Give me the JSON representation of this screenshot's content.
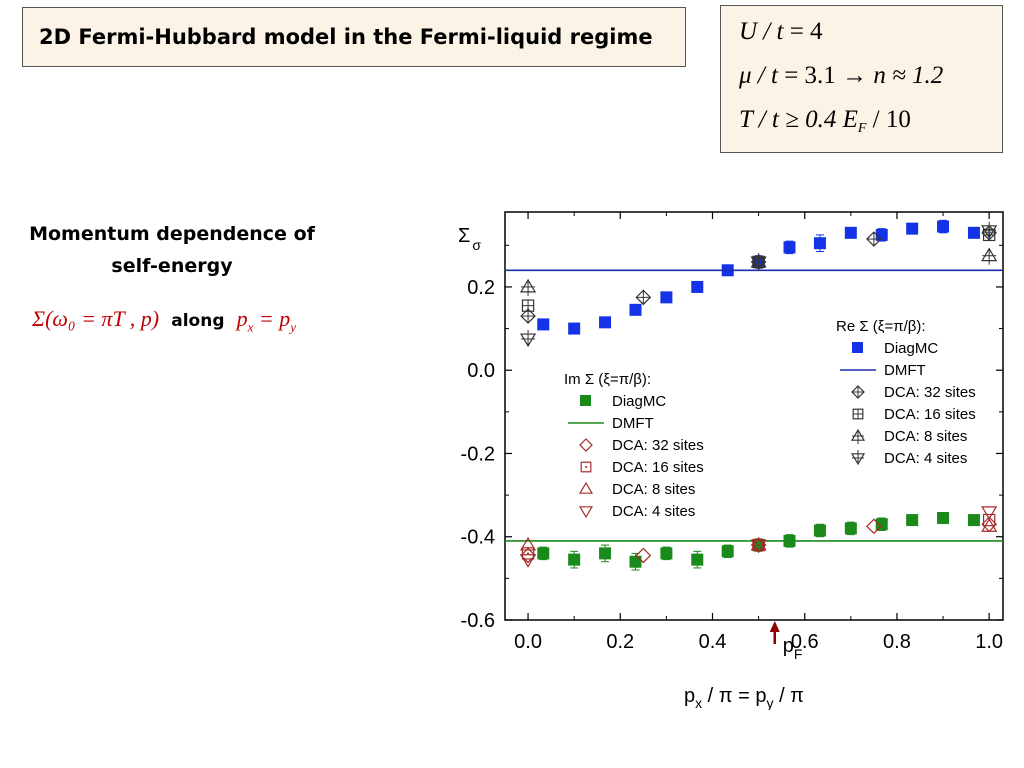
{
  "header": {
    "title": "2D Fermi-Hubbard model in the Fermi-liquid regime"
  },
  "params": {
    "line1": {
      "lhs": "U / t",
      "rhs": "= 4"
    },
    "line2": {
      "lhs": "μ / t",
      "rhs": "= 3.1",
      "arrow": "→",
      "n": "n ≈ 1.2"
    },
    "line3": {
      "lhs": "T / t ≥ 0.4",
      "glyph": "",
      "ef": "E",
      "ef_sub": "F",
      "tail": "/ 10"
    }
  },
  "side": {
    "subtitle": "Momentum dependence of self-energy",
    "formula": "Σ(ω₀ = πT , p)",
    "along": "along",
    "px": "p",
    "px_sub": "x",
    "eq": " = ",
    "py": "p",
    "py_sub": "y"
  },
  "chart_data": {
    "type": "scatter",
    "xlabel": "p_x / π = p_y / π",
    "ylabel": "Σ_σ",
    "xlim": [
      -0.05,
      1.03
    ],
    "ylim": [
      -0.6,
      0.38
    ],
    "xticks": [
      "0.0",
      "0.2",
      "0.4",
      "0.6",
      "0.8",
      "1.0"
    ],
    "yticks": [
      "0.2",
      "0.0",
      "-0.2",
      "-0.4",
      "-0.6"
    ],
    "pf_label": "p_F",
    "pf_x": 0.535,
    "legend_re": {
      "title": "Re Σ (ξ=π/β):",
      "items": [
        "DiagMC",
        "DMFT",
        "DCA: 32 sites",
        "DCA: 16 sites",
        "DCA: 8 sites",
        "DCA: 4 sites"
      ]
    },
    "legend_im": {
      "title": "Im Σ (ξ=π/β):",
      "items": [
        "DiagMC",
        "DMFT",
        "DCA: 32 sites",
        "DCA: 16 sites",
        "DCA: 8 sites",
        "DCA: 4 sites"
      ]
    },
    "colors": {
      "re": "#1432e6",
      "im": "#1a8a1a",
      "dmft_re": "#1a2fb0",
      "dmft_im": "#1a8a1a",
      "dca_re": "#333333",
      "dca_im": "#a52a2a"
    },
    "series": [
      {
        "name": "Re Σ DiagMC",
        "x": [
          0.033,
          0.1,
          0.167,
          0.233,
          0.3,
          0.367,
          0.433,
          0.5,
          0.567,
          0.633,
          0.7,
          0.767,
          0.833,
          0.9,
          0.967
        ],
        "y": [
          0.11,
          0.1,
          0.115,
          0.145,
          0.175,
          0.2,
          0.24,
          0.26,
          0.295,
          0.305,
          0.33,
          0.325,
          0.34,
          0.345,
          0.33
        ],
        "err": [
          0.012,
          0.008,
          0.008,
          0.012,
          0.01,
          0.008,
          0.01,
          0.015,
          0.015,
          0.02,
          0.01,
          0.015,
          0.01,
          0.015,
          0.01
        ]
      },
      {
        "name": "Re Σ DMFT",
        "y": 0.24
      },
      {
        "name": "Re Σ DCA: 32 sites",
        "x": [
          0.0,
          0.25,
          0.5,
          0.75,
          1.0
        ],
        "y": [
          0.13,
          0.175,
          0.26,
          0.315,
          0.33
        ]
      },
      {
        "name": "Re Σ DCA: 16 sites",
        "x": [
          0.0,
          0.5,
          1.0
        ],
        "y": [
          0.155,
          0.26,
          0.325
        ]
      },
      {
        "name": "Re Σ DCA: 8 sites",
        "x": [
          0.0,
          0.5,
          1.0
        ],
        "y": [
          0.2,
          0.26,
          0.275
        ]
      },
      {
        "name": "Re Σ DCA: 4 sites",
        "x": [
          0.0,
          0.5,
          1.0
        ],
        "y": [
          0.075,
          0.26,
          0.335
        ]
      },
      {
        "name": "Im Σ DiagMC",
        "x": [
          0.033,
          0.1,
          0.167,
          0.233,
          0.3,
          0.367,
          0.433,
          0.5,
          0.567,
          0.633,
          0.7,
          0.767,
          0.833,
          0.9,
          0.967
        ],
        "y": [
          -0.44,
          -0.455,
          -0.44,
          -0.46,
          -0.44,
          -0.455,
          -0.435,
          -0.42,
          -0.41,
          -0.385,
          -0.38,
          -0.37,
          -0.36,
          -0.355,
          -0.36
        ],
        "err": [
          0.015,
          0.02,
          0.02,
          0.02,
          0.015,
          0.02,
          0.015,
          0.015,
          0.015,
          0.015,
          0.015,
          0.015,
          0.012,
          0.012,
          0.012
        ]
      },
      {
        "name": "Im Σ DMFT",
        "y": -0.41
      },
      {
        "name": "Im Σ DCA: 32 sites",
        "x": [
          0.0,
          0.25,
          0.5,
          0.75,
          1.0
        ],
        "y": [
          -0.445,
          -0.445,
          -0.42,
          -0.375,
          -0.37
        ]
      },
      {
        "name": "Im Σ DCA: 16 sites",
        "x": [
          0.0,
          0.5,
          1.0
        ],
        "y": [
          -0.44,
          -0.42,
          -0.36
        ]
      },
      {
        "name": "Im Σ DCA: 8 sites",
        "x": [
          0.0,
          0.5,
          1.0
        ],
        "y": [
          -0.42,
          -0.42,
          -0.375
        ]
      },
      {
        "name": "Im Σ DCA: 4 sites",
        "x": [
          0.0,
          0.5,
          1.0
        ],
        "y": [
          -0.455,
          -0.42,
          -0.34
        ]
      }
    ]
  }
}
